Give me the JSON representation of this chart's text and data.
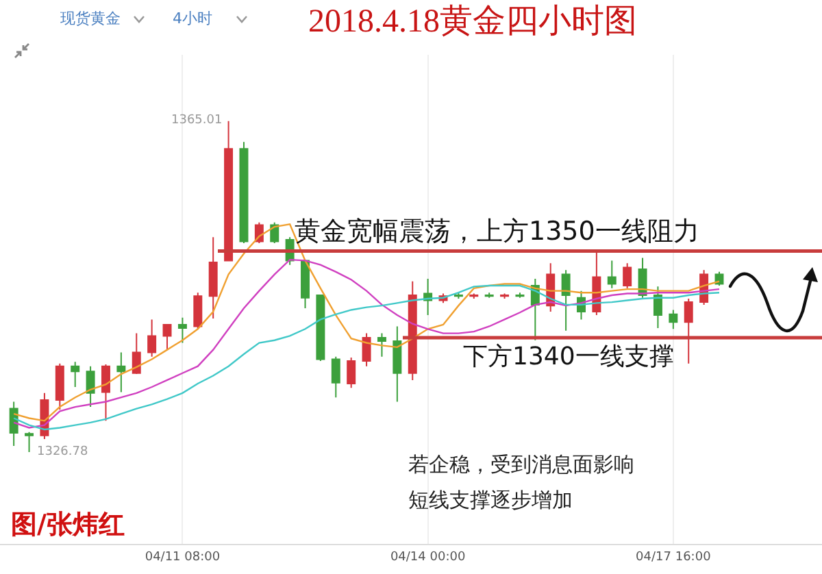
{
  "chart_data": {
    "type": "candlestick",
    "title": "2018.4.18黄金四小时图",
    "categories": [
      null,
      null,
      null,
      null,
      null,
      null,
      null,
      null,
      null,
      null,
      null,
      "04/11 08:00",
      null,
      null,
      null,
      null,
      null,
      null,
      null,
      null,
      null,
      null,
      null,
      null,
      null,
      null,
      null,
      "04/14 00:00",
      null,
      null,
      null,
      null,
      null,
      null,
      null,
      null,
      null,
      null,
      null,
      null,
      null,
      null,
      null,
      "04/17 16:00",
      null,
      null,
      null
    ],
    "ohlc": [
      [
        1331.8,
        1332.6,
        1327.5,
        1329.0
      ],
      [
        1328.9,
        1329.1,
        1326.78,
        1328.7
      ],
      [
        1328.7,
        1333.6,
        1328.3,
        1332.8
      ],
      [
        1332.8,
        1337.0,
        1331.7,
        1336.7
      ],
      [
        1336.7,
        1337.2,
        1334.3,
        1336.1
      ],
      [
        1336.1,
        1336.7,
        1332.0,
        1333.6
      ],
      [
        1333.7,
        1336.9,
        1330.4,
        1336.7
      ],
      [
        1336.7,
        1338.3,
        1333.7,
        1336.1
      ],
      [
        1335.9,
        1340.5,
        1335.8,
        1338.3
      ],
      [
        1338.3,
        1342.1,
        1337.8,
        1340.2
      ],
      [
        1340.2,
        1341.5,
        1338.6,
        1341.5
      ],
      [
        1341.5,
        1342.3,
        1339.4,
        1341.1
      ],
      [
        1341.3,
        1345.2,
        1341.0,
        1344.8
      ],
      [
        1344.8,
        1351.6,
        1342.2,
        1348.7
      ],
      [
        1348.9,
        1365.01,
        1348.9,
        1361.8
      ],
      [
        1361.8,
        1362.6,
        1350.9,
        1351.1
      ],
      [
        1351.1,
        1353.3,
        1350.9,
        1353.0
      ],
      [
        1353.0,
        1353.3,
        1350.9,
        1351.1
      ],
      [
        1351.3,
        1351.6,
        1348.4,
        1348.9
      ],
      [
        1348.9,
        1348.9,
        1343.4,
        1344.6
      ],
      [
        1344.9,
        1344.9,
        1337.3,
        1337.5
      ],
      [
        1337.5,
        1337.8,
        1333.1,
        1334.8
      ],
      [
        1334.7,
        1337.7,
        1334.2,
        1337.3
      ],
      [
        1337.3,
        1340.5,
        1336.7,
        1340.0
      ],
      [
        1340.0,
        1340.5,
        1337.8,
        1339.6
      ],
      [
        1339.6,
        1341.3,
        1332.6,
        1335.9
      ],
      [
        1335.9,
        1346.5,
        1335.1,
        1344.9
      ],
      [
        1345.1,
        1346.8,
        1342.6,
        1344.3
      ],
      [
        1344.3,
        1345.1,
        1344.0,
        1344.8
      ],
      [
        1344.9,
        1345.2,
        1344.5,
        1344.8
      ],
      [
        1344.8,
        1345.1,
        1344.5,
        1344.9
      ],
      [
        1344.9,
        1345.2,
        1344.6,
        1344.8
      ],
      [
        1344.8,
        1345.1,
        1344.5,
        1344.9
      ],
      [
        1344.9,
        1345.2,
        1344.6,
        1344.8
      ],
      [
        1346.0,
        1346.8,
        1339.7,
        1343.8
      ],
      [
        1343.7,
        1348.6,
        1343.0,
        1347.3
      ],
      [
        1347.3,
        1347.8,
        1340.8,
        1344.9
      ],
      [
        1344.6,
        1345.4,
        1342.1,
        1343.0
      ],
      [
        1343.0,
        1350.1,
        1342.6,
        1347.0
      ],
      [
        1347.0,
        1348.9,
        1345.7,
        1346.2
      ],
      [
        1346.0,
        1348.6,
        1345.7,
        1348.1
      ],
      [
        1347.9,
        1349.2,
        1344.6,
        1344.9
      ],
      [
        1344.9,
        1345.9,
        1341.1,
        1342.6
      ],
      [
        1342.7,
        1343.2,
        1341.0,
        1341.8
      ],
      [
        1341.8,
        1344.5,
        1337.0,
        1344.1
      ],
      [
        1344.1,
        1347.8,
        1343.8,
        1347.3
      ],
      [
        1347.3,
        1347.6,
        1346.0,
        1346.2
      ]
    ],
    "colors": [
      "#3ca03c",
      "#3ca03c",
      "#d4343c",
      "#d4343c",
      "#3ca03c",
      "#3ca03c",
      "#d4343c",
      "#3ca03c",
      "#d4343c",
      "#d4343c",
      "#d4343c",
      "#3ca03c",
      "#d4343c",
      "#d4343c",
      "#d4343c",
      "#3ca03c",
      "#d4343c",
      "#3ca03c",
      "#3ca03c",
      "#3ca03c",
      "#3ca03c",
      "#3ca03c",
      "#d4343c",
      "#d4343c",
      "#3ca03c",
      "#3ca03c",
      "#d4343c",
      "#3ca03c",
      "#d4343c",
      "#3ca03c",
      "#d4343c",
      "#3ca03c",
      "#d4343c",
      "#3ca03c",
      "#3ca03c",
      "#d4343c",
      "#3ca03c",
      "#3ca03c",
      "#d4343c",
      "#3ca03c",
      "#d4343c",
      "#3ca03c",
      "#3ca03c",
      "#3ca03c",
      "#d4343c",
      "#d4343c",
      "#3ca03c"
    ],
    "series": [
      {
        "type": "line",
        "color": "#f0a030",
        "values": [
          1331.2,
          1330.7,
          1330.4,
          1332.0,
          1333.1,
          1334.0,
          1334.6,
          1335.8,
          1336.6,
          1337.5,
          1338.6,
          1339.7,
          1341.0,
          1343.0,
          1347.3,
          1349.7,
          1351.7,
          1352.8,
          1353.1,
          1348.9,
          1345.7,
          1342.6,
          1339.9,
          1339.4,
          1339.1,
          1338.9,
          1339.9,
          1341.0,
          1341.5,
          1343.7,
          1345.7,
          1346.0,
          1346.2,
          1346.2,
          1345.7,
          1345.4,
          1345.4,
          1345.2,
          1345.2,
          1345.4,
          1345.6,
          1345.6,
          1345.4,
          1345.4,
          1345.4,
          1346.0,
          1346.5
        ]
      },
      {
        "type": "line",
        "color": "#d040c0",
        "values": [
          1330.2,
          1329.6,
          1329.9,
          1331.5,
          1332.0,
          1332.3,
          1332.6,
          1333.1,
          1333.6,
          1334.3,
          1335.1,
          1335.9,
          1336.7,
          1338.6,
          1341.0,
          1343.4,
          1345.4,
          1347.3,
          1349.0,
          1348.9,
          1348.4,
          1347.6,
          1346.7,
          1345.4,
          1343.8,
          1342.6,
          1341.6,
          1341.0,
          1340.5,
          1340.5,
          1340.7,
          1341.3,
          1342.1,
          1342.9,
          1343.8,
          1344.1,
          1343.7,
          1344.0,
          1344.5,
          1344.9,
          1345.1,
          1345.1,
          1345.2,
          1345.2,
          1345.2,
          1345.4,
          1345.6
        ]
      },
      {
        "type": "line",
        "color": "#40c8c8",
        "values": [
          1330.7,
          1329.9,
          1329.4,
          1329.6,
          1329.9,
          1330.2,
          1330.6,
          1331.2,
          1331.8,
          1332.3,
          1332.9,
          1333.6,
          1334.7,
          1335.6,
          1336.7,
          1338.1,
          1339.4,
          1339.7,
          1340.2,
          1341.0,
          1342.1,
          1342.7,
          1343.2,
          1343.5,
          1343.7,
          1344.0,
          1344.3,
          1344.5,
          1344.6,
          1345.2,
          1345.9,
          1346.0,
          1346.0,
          1346.0,
          1345.4,
          1344.5,
          1343.8,
          1343.8,
          1344.0,
          1344.1,
          1344.3,
          1344.5,
          1344.6,
          1344.6,
          1344.9,
          1345.1,
          1345.2
        ]
      }
    ],
    "ref_lines": [
      {
        "axis": "y",
        "value": 1350,
        "label": "黄金宽幅震荡，上方1350一线阻力",
        "color": "#c83c3c"
      },
      {
        "axis": "y",
        "value": 1340,
        "label": "下方1340一线支撑",
        "color": "#c83c3c"
      }
    ],
    "annotations": [
      "现货黄金",
      "4小时",
      "1365.01",
      "1326.78",
      "若企稳，受到消息面影响",
      "短线支撑逐步增加",
      "图/张炜红"
    ],
    "grid": "x",
    "marker": "none",
    "line_style": "solid"
  }
}
